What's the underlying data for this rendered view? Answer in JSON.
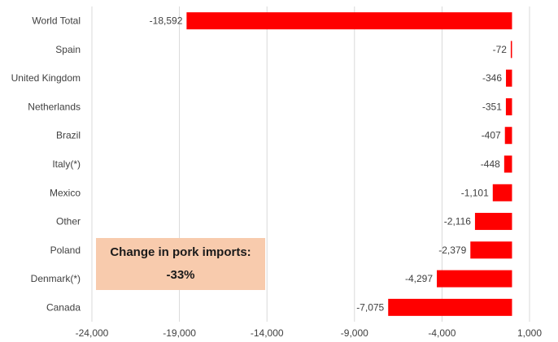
{
  "chart_data": {
    "type": "bar",
    "orientation": "horizontal",
    "categories": [
      "World Total",
      "Spain",
      "United Kingdom",
      "Netherlands",
      "Brazil",
      "Italy(*)",
      "Mexico",
      "Other",
      "Poland",
      "Denmark(*)",
      "Canada"
    ],
    "values": [
      -18592,
      -72,
      -346,
      -351,
      -407,
      -448,
      -1101,
      -2116,
      -2379,
      -4297,
      -7075
    ],
    "value_labels": [
      "-18,592",
      "-72",
      "-346",
      "-351",
      "-407",
      "-448",
      "-1,101",
      "-2,116",
      "-2,379",
      "-4,297",
      "-7,075"
    ],
    "xlim": [
      -24000,
      1000
    ],
    "x_ticks": [
      -24000,
      -19000,
      -14000,
      -9000,
      -4000,
      1000
    ],
    "x_tick_labels": [
      "-24,000",
      "-19,000",
      "-14,000",
      "-9,000",
      "-4,000",
      "1,000"
    ],
    "grid": true,
    "bar_color": "#ff0000",
    "annotation": {
      "title": "Change in pork imports:",
      "value": "-33%",
      "background": "#f8cbad"
    }
  }
}
